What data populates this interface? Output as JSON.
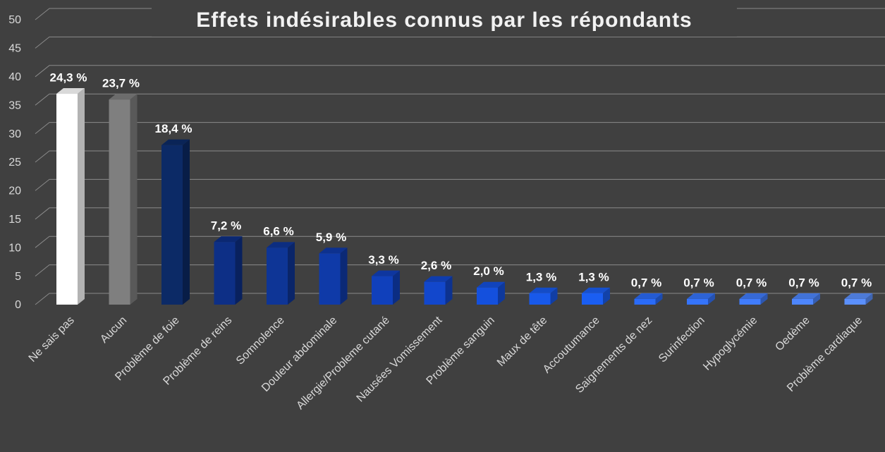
{
  "chart_data": {
    "type": "bar3d",
    "title": "Effets indésirables connus par les répondants",
    "categories": [
      "Ne sais pas",
      "Aucun",
      "Problème de foie",
      "Problème de reins",
      "Somnolence",
      "Douleur abdominale",
      "Allergie/Probleme cutané",
      "Nausées Vomissement",
      "Problème sanguin",
      "Maux de tête",
      "Accoutumance",
      "Saignements de nez",
      "Surinfection",
      "Hypoglycémie",
      "Oedème",
      "Problème cardiaque"
    ],
    "values": [
      37,
      36,
      28,
      11,
      10,
      9,
      5,
      4,
      3,
      2,
      2,
      1,
      1,
      1,
      1,
      1
    ],
    "value_labels": [
      "24,3 %",
      "23,7 %",
      "18,4 %",
      "7,2 %",
      "6,6 %",
      "5,9 %",
      "3,3 %",
      "2,6 %",
      "2,0 %",
      "1,3 %",
      "1,3 %",
      "0,7 %",
      "0,7 %",
      "0,7 %",
      "0,7 %",
      "0,7 %"
    ],
    "colors": [
      "#ffffff",
      "#7f7f7f",
      "#0c2a66",
      "#0d2f86",
      "#0e3596",
      "#0f3aa8",
      "#1040bb",
      "#1247cc",
      "#1450dd",
      "#1859ea",
      "#1a5ef2",
      "#2a6bf8",
      "#3574fb",
      "#407cfc",
      "#4d86fd",
      "#5b90fd"
    ],
    "ylim": [
      0,
      50
    ],
    "yticks": [
      0,
      5,
      10,
      15,
      20,
      25,
      30,
      35,
      40,
      45,
      50
    ],
    "grid": true
  }
}
